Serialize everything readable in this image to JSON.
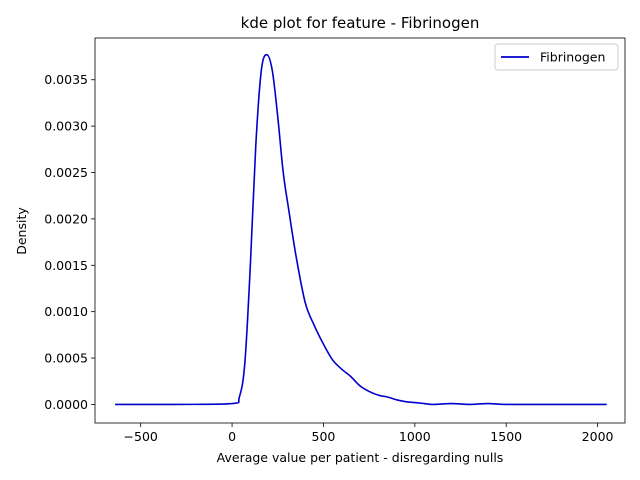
{
  "chart_data": {
    "type": "line",
    "title": "kde plot for feature -  Fibrinogen",
    "xlabel": "Average value per patient - disregarding nulls",
    "ylabel": "Density",
    "xlim": [
      -750,
      2150
    ],
    "ylim": [
      -0.0002,
      0.00395
    ],
    "xticks": [
      -500,
      0,
      500,
      1000,
      1500,
      2000
    ],
    "xtick_labels": [
      "−500",
      "0",
      "500",
      "1000",
      "1500",
      "2000"
    ],
    "yticks": [
      0.0,
      0.0005,
      0.001,
      0.0015,
      0.002,
      0.0025,
      0.003,
      0.0035
    ],
    "ytick_labels": [
      "0.0000",
      "0.0005",
      "0.0010",
      "0.0015",
      "0.0020",
      "0.0025",
      "0.0030",
      "0.0035"
    ],
    "legend_position": "top-right",
    "grid": false,
    "series": [
      {
        "name": "Fibrinogen",
        "color": "#0000cc",
        "x": [
          -640,
          -300,
          0,
          40,
          70,
          100,
          130,
          160,
          190,
          220,
          250,
          280,
          310,
          350,
          400,
          450,
          500,
          550,
          600,
          650,
          700,
          750,
          800,
          850,
          900,
          950,
          1000,
          1050,
          1100,
          1200,
          1300,
          1400,
          1500,
          1700,
          2000,
          2050
        ],
        "y": [
          0.0,
          0.0,
          1e-05,
          8e-05,
          0.00045,
          0.0015,
          0.0028,
          0.0036,
          0.00377,
          0.0036,
          0.0031,
          0.0025,
          0.0021,
          0.0016,
          0.0011,
          0.00085,
          0.00065,
          0.00048,
          0.00038,
          0.0003,
          0.0002,
          0.00014,
          0.0001,
          8e-05,
          5e-05,
          3e-05,
          2e-05,
          1e-05,
          0.0,
          1e-05,
          0.0,
          1e-05,
          0.0,
          0.0,
          0.0,
          0.0
        ]
      }
    ]
  }
}
